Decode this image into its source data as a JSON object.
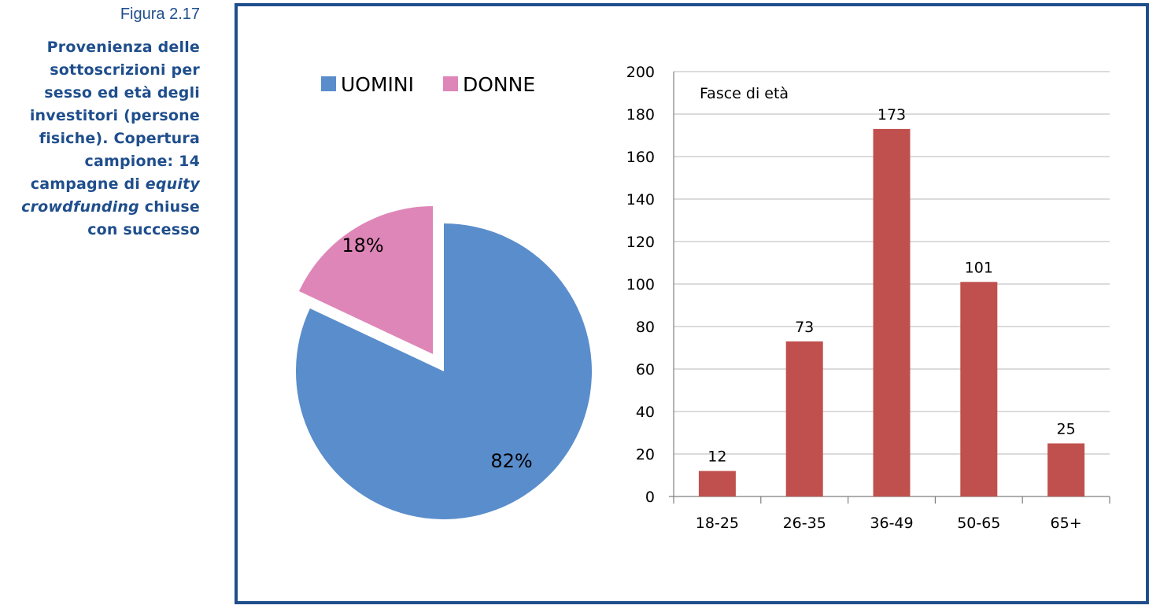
{
  "caption": {
    "figure_label": "Figura 2.17",
    "title_part1": "Provenienza delle sottoscrizioni per sesso ed età degli investitori (persone fisiche). Copertura campione: 14 campagne di ",
    "title_italic1": "equity crowdfunding",
    "title_part2": " chiuse con successo"
  },
  "chart_data": [
    {
      "type": "pie",
      "categories": [
        "UOMINI",
        "DONNE"
      ],
      "values": [
        82,
        18
      ],
      "labels": [
        "82%",
        "18%"
      ],
      "colors": [
        "#5a8dcb",
        "#df86b8"
      ],
      "legend": "top",
      "exploded": "DONNE"
    },
    {
      "type": "bar",
      "categories": [
        "18-25",
        "26-35",
        "36-49",
        "50-65",
        "65+"
      ],
      "values": [
        12,
        73,
        173,
        101,
        25
      ],
      "title": "Fasce di età",
      "ylim": [
        0,
        200
      ],
      "yticks": [
        0,
        20,
        40,
        60,
        80,
        100,
        120,
        140,
        160,
        180,
        200
      ],
      "grid": true,
      "color": "#c0504d"
    }
  ]
}
